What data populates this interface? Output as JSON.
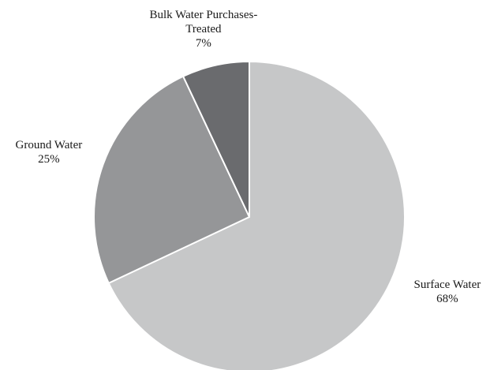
{
  "chart_data": {
    "type": "pie",
    "title": "",
    "start_angle_deg": 90,
    "direction": "clockwise",
    "slices": [
      {
        "name": "Surface Water",
        "label_lines": [
          "Surface Water",
          "68%"
        ],
        "value": 68,
        "color": "#c6c7c8"
      },
      {
        "name": "Ground Water",
        "label_lines": [
          "Ground Water",
          "25%"
        ],
        "value": 25,
        "color": "#959698"
      },
      {
        "name": "Bulk Water Purchases-Treated",
        "label_lines": [
          "Bulk Water Purchases-",
          "Treated",
          "7%"
        ],
        "value": 7,
        "color": "#6a6b6e"
      }
    ],
    "slice_border_color": "#ffffff",
    "legend": "none"
  }
}
